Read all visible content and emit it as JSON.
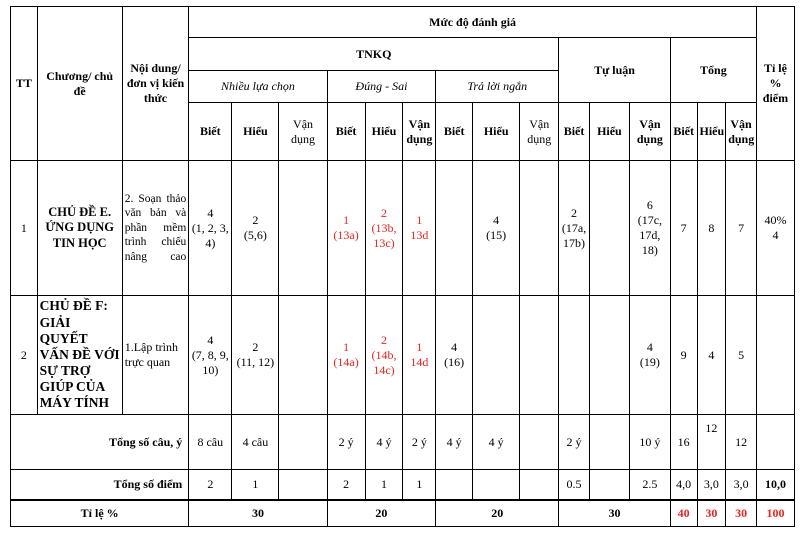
{
  "header": {
    "tt": "TT",
    "chapter": "Chương/ chủ đề",
    "content": "Nội dung/đơn vị kiến thức",
    "muc_do": "Mức độ đánh giá",
    "tnkq": "TNKQ",
    "tu_luan": "Tự luận",
    "tong": "Tổng",
    "tile": "Tỉ lệ % điểm",
    "nhieu_lua_chon": "Nhiều lựa chọn",
    "dung_sai": "Đúng - Sai",
    "tra_loi_ngan": "Trả lời ngắn",
    "biet": "Biết",
    "hieu": "Hiểu",
    "van_dung": "Vận dụng"
  },
  "rows": [
    {
      "tt": "1",
      "chapter": "CHỦ ĐỀ E. ỨNG DỤNG TIN HỌC",
      "content": "2. Soạn thảo văn bản và phần mềm trình chiếu nâng cao",
      "nlc_biet": "4\n(1, 2, 3, 4)",
      "nlc_hieu": "2\n(5,6)",
      "nlc_vd": "",
      "ds_biet": "1\n(13a)",
      "ds_hieu": "2\n(13b, 13c)",
      "ds_vd": "1\n13d",
      "tln_biet": "",
      "tln_hieu": "4\n(15)",
      "tln_vd": "",
      "tl_biet": "2\n(17a, 17b)",
      "tl_hieu": "",
      "tl_vd": "6\n(17c, 17d, 18)",
      "tong_biet": "7",
      "tong_hieu": "8",
      "tong_vd": "7",
      "tile": "40%\n4"
    },
    {
      "tt": "2",
      "chapter": "CHỦ ĐỀ F: GIẢI QUYẾT VẤN ĐỀ VỚI SỰ TRỢ GIÚP CỦA MÁY TÍNH",
      "content": "1.Lập trình trực quan",
      "nlc_biet": "4\n(7, 8, 9, 10)",
      "nlc_hieu": "2\n(11, 12)",
      "nlc_vd": "",
      "ds_biet": "1\n(14a)",
      "ds_hieu": "2\n(14b, 14c)",
      "ds_vd": "1\n14d",
      "tln_biet": "4\n(16)",
      "tln_hieu": "",
      "tln_vd": "",
      "tl_biet": "",
      "tl_hieu": "",
      "tl_vd": "4\n(19)",
      "tong_biet": "9",
      "tong_hieu": "4",
      "tong_vd": "5",
      "tile": ""
    }
  ],
  "tong_cau": {
    "label": "Tổng số câu, ý",
    "nlc_biet": "8 câu",
    "nlc_hieu": "4 câu",
    "nlc_vd": "",
    "ds_biet": "2 ý",
    "ds_hieu": "4 ý",
    "ds_vd": "2 ý",
    "tln_biet": "4 ý",
    "tln_hieu": "4 ý",
    "tln_vd": "",
    "tl_biet": "2 ý",
    "tl_hieu": "",
    "tl_vd": "10 ý",
    "tong_biet": "16",
    "tong_hieu": "12",
    "tong_vd": "12",
    "tile": ""
  },
  "tong_diem": {
    "label": "Tổng số điểm",
    "nlc_biet": "2",
    "nlc_hieu": "1",
    "nlc_vd": "",
    "ds_biet": "2",
    "ds_hieu": "1",
    "ds_vd": "1",
    "tln_biet": "",
    "tln_hieu": "",
    "tln_vd": "",
    "tl_biet": "0.5",
    "tl_hieu": "",
    "tl_vd": "2.5",
    "tong_biet": "4,0",
    "tong_hieu": "3,0",
    "tong_vd": "3,0",
    "tile": "10,0"
  },
  "ti_le": {
    "label": "Tỉ lệ %",
    "nlc": "30",
    "ds": "20",
    "tln": "20",
    "tl": "30",
    "tong_biet": "40",
    "tong_hieu": "30",
    "tong_vd": "30",
    "tile": "100"
  },
  "colors": {
    "highlight": "#e8251f"
  }
}
